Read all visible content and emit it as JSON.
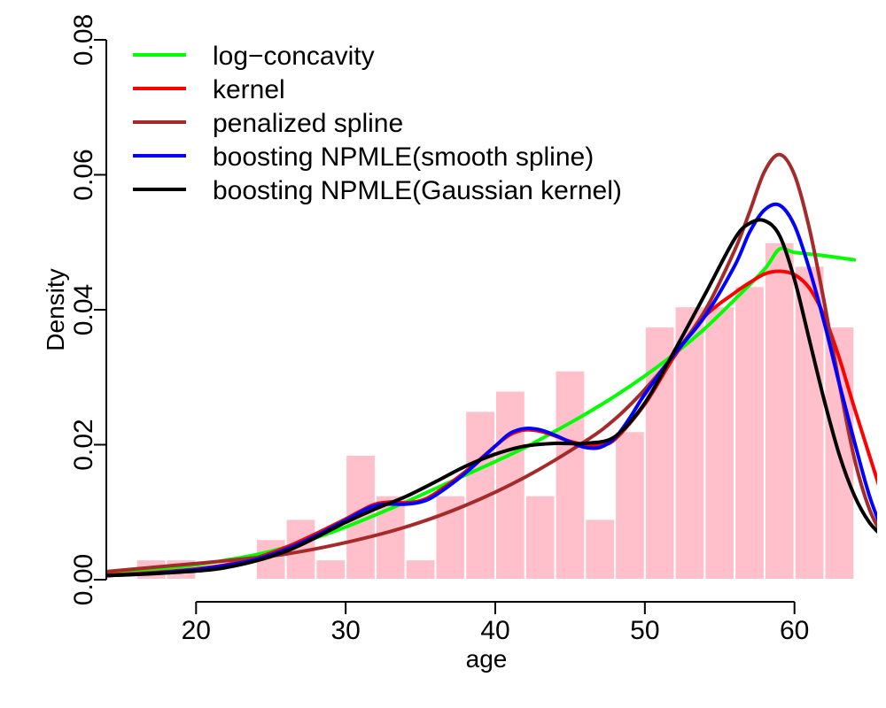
{
  "chart_data": {
    "type": "histogram+density",
    "xlabel": "age",
    "ylabel": "Density",
    "xlim": [
      14,
      66
    ],
    "ylim": [
      0,
      0.08
    ],
    "x_ticks": [
      20,
      30,
      40,
      50,
      60
    ],
    "x_tick_labels": [
      "20",
      "30",
      "40",
      "50",
      "60"
    ],
    "y_ticks": [
      0,
      0.02,
      0.04,
      0.06,
      0.08
    ],
    "y_tick_labels": [
      "0.00",
      "0.02",
      "0.04",
      "0.06",
      "0.08"
    ],
    "legend_position": "top-left",
    "histogram": {
      "color": "#ffc0cb",
      "bins": [
        {
          "x0": 16,
          "x1": 18,
          "density": 0.003
        },
        {
          "x0": 18,
          "x1": 20,
          "density": 0.003
        },
        {
          "x0": 24,
          "x1": 26,
          "density": 0.006
        },
        {
          "x0": 26,
          "x1": 28,
          "density": 0.009
        },
        {
          "x0": 28,
          "x1": 30,
          "density": 0.003
        },
        {
          "x0": 30,
          "x1": 32,
          "density": 0.0185
        },
        {
          "x0": 32,
          "x1": 34,
          "density": 0.0125
        },
        {
          "x0": 34,
          "x1": 36,
          "density": 0.003
        },
        {
          "x0": 36,
          "x1": 38,
          "density": 0.0125
        },
        {
          "x0": 38,
          "x1": 40,
          "density": 0.025
        },
        {
          "x0": 40,
          "x1": 42,
          "density": 0.028
        },
        {
          "x0": 42,
          "x1": 44,
          "density": 0.0125
        },
        {
          "x0": 44,
          "x1": 46,
          "density": 0.031
        },
        {
          "x0": 46,
          "x1": 48,
          "density": 0.009
        },
        {
          "x0": 48,
          "x1": 50,
          "density": 0.022
        },
        {
          "x0": 50,
          "x1": 52,
          "density": 0.0375
        },
        {
          "x0": 52,
          "x1": 54,
          "density": 0.0405
        },
        {
          "x0": 54,
          "x1": 56,
          "density": 0.0405
        },
        {
          "x0": 56,
          "x1": 58,
          "density": 0.0435
        },
        {
          "x0": 58,
          "x1": 60,
          "density": 0.05
        },
        {
          "x0": 60,
          "x1": 62,
          "density": 0.0465
        },
        {
          "x0": 62,
          "x1": 64,
          "density": 0.0375
        }
      ]
    },
    "series": [
      {
        "name": "log−concavity",
        "color": "#00ff00",
        "x": [
          14,
          16,
          18,
          20,
          22,
          24,
          26,
          28,
          30,
          32,
          34,
          36,
          38,
          40,
          42,
          44,
          46,
          48,
          50,
          52,
          54,
          56,
          58,
          59,
          60,
          62,
          64
        ],
        "y": [
          0.0008,
          0.0012,
          0.0017,
          0.0022,
          0.0029,
          0.0037,
          0.0048,
          0.0062,
          0.0078,
          0.0096,
          0.0115,
          0.0135,
          0.0155,
          0.0175,
          0.0196,
          0.022,
          0.0245,
          0.0272,
          0.0302,
          0.0335,
          0.0372,
          0.0415,
          0.046,
          0.049,
          0.0485,
          0.048,
          0.0474
        ]
      },
      {
        "name": "kernel",
        "color": "#ff0000",
        "x": [
          14,
          16,
          18,
          20,
          22,
          24,
          26,
          28,
          30,
          31,
          32,
          33,
          34,
          35,
          36,
          38,
          40,
          41,
          42,
          43,
          44,
          45,
          46,
          47,
          48,
          50,
          52,
          54,
          56,
          57,
          58,
          59,
          60,
          61,
          62,
          63,
          64,
          66
        ],
        "y": [
          0.0007,
          0.0009,
          0.0012,
          0.0016,
          0.0022,
          0.0032,
          0.0048,
          0.0068,
          0.009,
          0.0102,
          0.0112,
          0.0115,
          0.0114,
          0.0117,
          0.0128,
          0.016,
          0.0198,
          0.0215,
          0.0222,
          0.022,
          0.0213,
          0.0205,
          0.02,
          0.02,
          0.0208,
          0.026,
          0.0332,
          0.039,
          0.0425,
          0.044,
          0.0453,
          0.0457,
          0.0452,
          0.0432,
          0.039,
          0.0328,
          0.0255,
          0.0115
        ]
      },
      {
        "name": "penalized spline",
        "color": "#a52a2a",
        "x": [
          14,
          18,
          22,
          26,
          30,
          34,
          38,
          42,
          46,
          48,
          50,
          52,
          54,
          56,
          57,
          58,
          59,
          60,
          61,
          62,
          63,
          64,
          65,
          66
        ],
        "y": [
          0.0012,
          0.002,
          0.0028,
          0.0038,
          0.0055,
          0.0078,
          0.011,
          0.0152,
          0.0205,
          0.0238,
          0.0282,
          0.0335,
          0.0398,
          0.0488,
          0.0545,
          0.0605,
          0.063,
          0.06,
          0.052,
          0.041,
          0.029,
          0.018,
          0.0105,
          0.006
        ]
      },
      {
        "name": "boosting NPMLE(smooth spline)",
        "color": "#0000ff",
        "x": [
          14,
          16,
          18,
          20,
          22,
          24,
          26,
          28,
          30,
          32,
          34,
          35,
          36,
          38,
          40,
          41,
          42,
          43,
          44,
          45,
          46,
          47,
          48,
          49,
          50,
          52,
          54,
          56,
          57,
          58,
          59,
          60,
          61,
          62,
          63,
          64,
          65,
          66
        ],
        "y": [
          0.0006,
          0.0008,
          0.0011,
          0.0015,
          0.0021,
          0.003,
          0.0045,
          0.0065,
          0.0088,
          0.011,
          0.0112,
          0.0115,
          0.0125,
          0.0158,
          0.0198,
          0.0217,
          0.0224,
          0.0222,
          0.0214,
          0.0204,
          0.0196,
          0.0196,
          0.021,
          0.024,
          0.0275,
          0.0335,
          0.039,
          0.0465,
          0.0515,
          0.0548,
          0.0555,
          0.0525,
          0.046,
          0.038,
          0.029,
          0.0205,
          0.0125,
          0.0065
        ]
      },
      {
        "name": "boosting NPMLE(Gaussian kernel)",
        "color": "#000000",
        "x": [
          14,
          18,
          22,
          26,
          30,
          32,
          34,
          36,
          38,
          40,
          42,
          44,
          46,
          48,
          50,
          52,
          54,
          56,
          57,
          58,
          59,
          60,
          61,
          62,
          63,
          64,
          65,
          66
        ],
        "y": [
          0.0006,
          0.001,
          0.0018,
          0.0042,
          0.0085,
          0.0105,
          0.0123,
          0.0145,
          0.0168,
          0.0186,
          0.0198,
          0.0202,
          0.0202,
          0.0212,
          0.0262,
          0.034,
          0.0422,
          0.0505,
          0.0528,
          0.0532,
          0.051,
          0.0445,
          0.0355,
          0.0265,
          0.0185,
          0.0125,
          0.0085,
          0.0062
        ]
      }
    ]
  }
}
